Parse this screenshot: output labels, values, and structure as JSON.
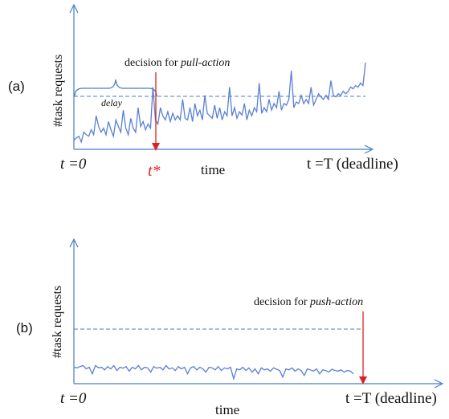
{
  "panel_a": {
    "label": "(a)",
    "ylabel": "#task requests",
    "xlabel": "time",
    "t0_label": "t =0",
    "tstar_label": "t*",
    "deadline_label": "t =T (deadline)",
    "decision_prefix": "decision for ",
    "decision_action": "pull-action",
    "delay_label": "delay",
    "series_values": [
      0.05,
      0.08,
      0.1,
      0.03,
      0.15,
      0.12,
      0.1,
      0.18,
      0.12,
      0.35,
      0.22,
      0.15,
      0.2,
      0.12,
      0.28,
      0.18,
      0.1,
      0.3,
      0.22,
      0.15,
      0.42,
      0.2,
      0.12,
      0.32,
      0.2,
      0.15,
      0.45,
      0.22,
      0.28,
      0.18,
      0.25,
      0.2,
      0.7,
      0.3,
      0.25,
      0.45,
      0.35,
      0.3,
      0.4,
      0.28,
      0.38,
      0.3,
      0.35,
      0.3,
      0.55,
      0.32,
      0.3,
      0.45,
      0.28,
      0.5,
      0.35,
      0.42,
      0.3,
      0.6,
      0.38,
      0.35,
      0.32,
      0.48,
      0.32,
      0.45,
      0.3,
      0.4,
      0.35,
      0.7,
      0.35,
      0.45,
      0.32,
      0.4,
      0.36,
      0.5,
      0.3,
      0.42,
      0.35,
      0.45,
      0.4,
      0.75,
      0.38,
      0.45,
      0.4,
      0.55,
      0.42,
      0.5,
      0.45,
      0.65,
      0.42,
      0.5,
      0.48,
      0.55,
      0.9,
      0.45,
      0.52,
      0.5,
      0.6,
      0.5,
      0.55,
      0.5,
      0.7,
      0.48,
      0.55,
      0.62,
      0.58,
      0.55,
      0.6,
      0.55,
      0.78,
      0.6,
      0.58,
      0.62,
      0.6,
      0.65,
      0.62,
      0.65,
      0.7,
      0.68,
      0.72,
      0.7,
      0.75,
      0.72,
      1.0
    ]
  },
  "panel_b": {
    "label": "(b)",
    "ylabel": "#task requests",
    "xlabel": "time",
    "t0_label": "t =0",
    "deadline_label": "t =T (deadline)",
    "decision_prefix": "decision for ",
    "decision_action": "push-action",
    "series_values": [
      0.5,
      0.48,
      0.52,
      0.55,
      0.45,
      0.5,
      0.3,
      0.55,
      0.48,
      0.5,
      0.42,
      0.52,
      0.45,
      0.55,
      0.4,
      0.5,
      0.47,
      0.52,
      0.38,
      0.5,
      0.45,
      0.55,
      0.42,
      0.5,
      0.48,
      0.35,
      0.52,
      0.47,
      0.5,
      0.42,
      0.55,
      0.45,
      0.48,
      0.4,
      0.52,
      0.45,
      0.5,
      0.3,
      0.48,
      0.52,
      0.42,
      0.5,
      0.45,
      0.35,
      0.5,
      0.48,
      0.42,
      0.52,
      0.4,
      0.48,
      0.45,
      0.5,
      0.15,
      0.45,
      0.42,
      0.5,
      0.4,
      0.48,
      0.35,
      0.45,
      0.3,
      0.48,
      0.42,
      0.45,
      0.38,
      0.48,
      0.44,
      0.4,
      0.2,
      0.45,
      0.42,
      0.48,
      0.38,
      0.45,
      0.4,
      0.25,
      0.45,
      0.42,
      0.38,
      0.45,
      0.3,
      0.42,
      0.4,
      0.35,
      0.44,
      0.4,
      0.38,
      0.42,
      0.35,
      0.4,
      0.38,
      0.3
    ]
  },
  "colors": {
    "axis": "#4a7cc7",
    "series": "#5b7fd4",
    "dashed": "#4a7cc7",
    "decision": "#e02020",
    "text": "#111111",
    "tstar": "#e02020"
  }
}
